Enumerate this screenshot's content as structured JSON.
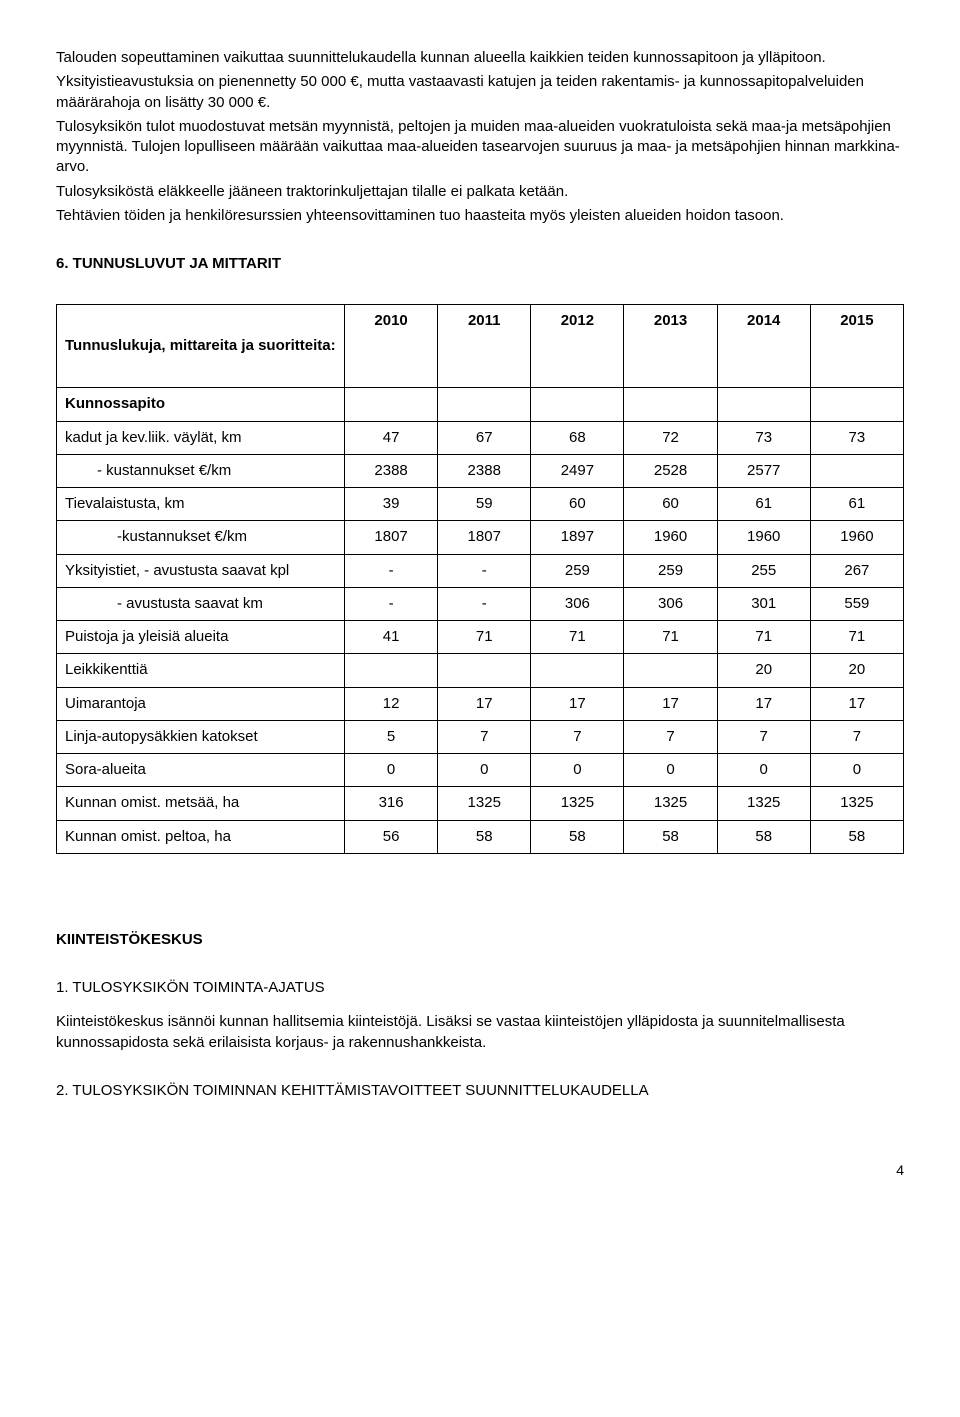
{
  "intro": {
    "p1": "Talouden sopeuttaminen vaikuttaa suunnittelukaudella kunnan alueella kaikkien teiden kunnossapitoon ja ylläpitoon.",
    "p2": "Yksityistieavustuksia on pienennetty 50 000 €, mutta vastaavasti katujen ja teiden rakentamis- ja kunnossapitopalveluiden määrärahoja on lisätty 30 000 €.",
    "p3": "Tulosyksikön tulot muodostuvat metsän myynnistä, peltojen ja muiden maa-alueiden vuokratuloista sekä maa-ja metsäpohjien myynnistä. Tulojen lopulliseen määrään vaikuttaa maa-alueiden tasearvojen suuruus ja maa- ja metsäpohjien hinnan markkina-arvo.",
    "p4": "Tulosyksiköstä eläkkeelle jääneen traktorinkuljettajan tilalle ei palkata ketään.",
    "p5": "Tehtävien töiden ja henkilöresurssien yhteensovittaminen tuo haasteita myös yleisten alueiden hoidon tasoon."
  },
  "section6": {
    "title": "6.   TUNNUSLUVUT JA MITTARIT",
    "table": {
      "header_label": "Tunnuslukuja, mittareita ja suoritteita:",
      "years": [
        "2010",
        "2011",
        "2012",
        "2013",
        "2014",
        "2015"
      ],
      "section_header": "Kunnossapito",
      "rows": [
        {
          "label": "kadut ja kev.liik. väylät, km",
          "indent": 0,
          "vals": [
            "47",
            "67",
            "68",
            "72",
            "73",
            "73"
          ]
        },
        {
          "label": "- kustannukset €/km",
          "indent": 1,
          "vals": [
            "2388",
            "2388",
            "2497",
            "2528",
            "2577",
            ""
          ]
        },
        {
          "label": "Tievalaistusta, km",
          "indent": 0,
          "vals": [
            "39",
            "59",
            "60",
            "60",
            "61",
            "61"
          ]
        },
        {
          "label": "-kustannukset €/km",
          "indent": 2,
          "vals": [
            "1807",
            "1807",
            "1897",
            "1960",
            "1960",
            "1960"
          ]
        },
        {
          "label": "Yksityistiet,   - avustusta saavat kpl",
          "indent": 0,
          "vals": [
            "-",
            "-",
            "259",
            "259",
            "255",
            "267"
          ]
        },
        {
          "label": "- avustusta saavat km",
          "indent": 2,
          "vals": [
            "-",
            "-",
            "306",
            "306",
            "301",
            "559"
          ]
        },
        {
          "label": "Puistoja ja yleisiä alueita",
          "indent": 0,
          "vals": [
            "41",
            "71",
            "71",
            "71",
            "71",
            "71"
          ]
        },
        {
          "label": "Leikkikenttiä",
          "indent": 0,
          "vals": [
            "",
            "",
            "",
            "",
            "20",
            "20"
          ]
        },
        {
          "label": "Uimarantoja",
          "indent": 0,
          "vals": [
            "12",
            "17",
            "17",
            "17",
            "17",
            "17"
          ]
        },
        {
          "label": "Linja-autopysäkkien katokset",
          "indent": 0,
          "vals": [
            "5",
            "7",
            "7",
            "7",
            "7",
            "7"
          ]
        },
        {
          "label": "Sora-alueita",
          "indent": 0,
          "vals": [
            "0",
            "0",
            "0",
            "0",
            "0",
            "0"
          ]
        },
        {
          "label": "Kunnan omist. metsää, ha",
          "indent": 0,
          "vals": [
            "316",
            "1325",
            "1325",
            "1325",
            "1325",
            "1325"
          ]
        },
        {
          "label": "Kunnan omist. peltoa, ha",
          "indent": 0,
          "vals": [
            "56",
            "58",
            "58",
            "58",
            "58",
            "58"
          ]
        }
      ]
    }
  },
  "kiinteisto": {
    "heading": "KIINTEISTÖKESKUS",
    "s1_title": "1. TULOSYKSIKÖN TOIMINTA-AJATUS",
    "s1_body": "Kiinteistökeskus isännöi kunnan hallitsemia kiinteistöjä. Lisäksi se vastaa kiinteistöjen ylläpidosta ja suunnitelmallisesta kunnossapidosta sekä erilaisista korjaus- ja rakennushankkeista.",
    "s2_title": "2. TULOSYKSIKÖN TOIMINNAN KEHITTÄMISTAVOITTEET SUUNNITTELUKAUDELLA"
  },
  "page_number": "4"
}
